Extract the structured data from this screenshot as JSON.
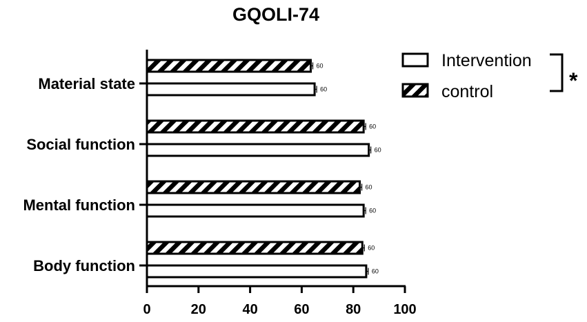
{
  "chart_data": {
    "type": "bar",
    "orientation": "horizontal",
    "title": "GQOLI-74",
    "categories": [
      "Material state",
      "Social function",
      "Mental function",
      "Body function"
    ],
    "series": [
      {
        "name": "Intervention",
        "pattern": "white-fill",
        "values": [
          65,
          86,
          84,
          85
        ],
        "labels": [
          "60",
          "60",
          "60",
          "60"
        ]
      },
      {
        "name": "control",
        "pattern": "diagonal-hatch",
        "values": [
          63.5,
          84,
          82.5,
          83.5
        ],
        "labels": [
          "60",
          "60",
          "60",
          "60"
        ]
      }
    ],
    "xlim": [
      0,
      100
    ],
    "xticks": [
      "0",
      "20",
      "40",
      "60",
      "80",
      "100"
    ],
    "xlabel": "",
    "ylabel": "",
    "grid": false,
    "legend_position": "top-right",
    "significance_mark": "*"
  }
}
